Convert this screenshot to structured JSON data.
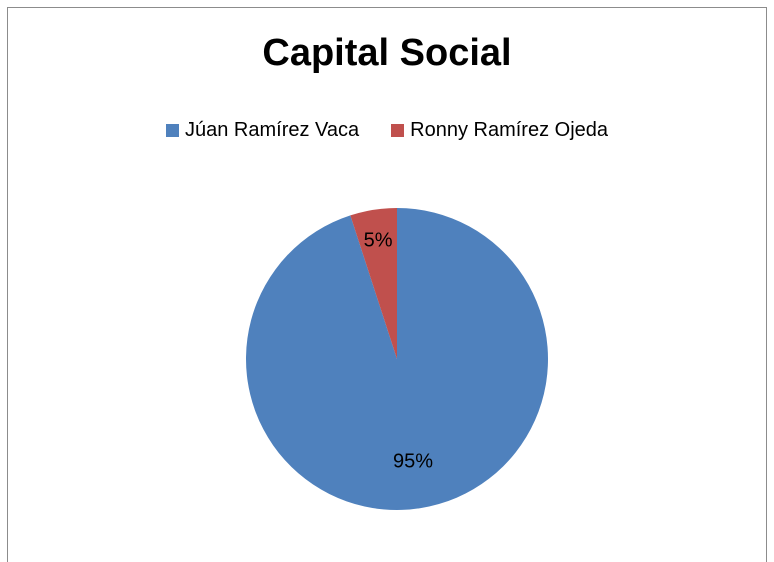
{
  "chart_data": {
    "type": "pie",
    "title": "Capital Social",
    "legend_position": "top",
    "slices": [
      {
        "name": "Júan Ramírez Vaca",
        "value": 95,
        "label": "95%",
        "color": "#4f81bd"
      },
      {
        "name": "Ronny Ramírez Ojeda",
        "value": 5,
        "label": "5%",
        "color": "#c0504d"
      }
    ]
  }
}
